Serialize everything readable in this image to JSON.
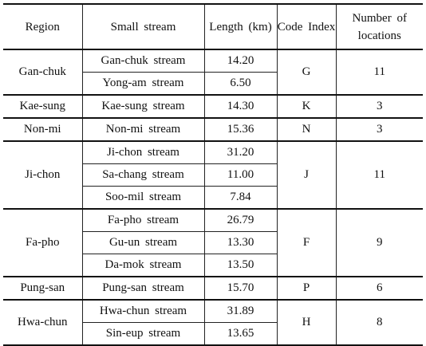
{
  "headers": {
    "region": "Region",
    "stream": "Small stream",
    "length": "Length (km)",
    "code": "Code Index",
    "locations": "Number of locations"
  },
  "groups": [
    {
      "region": "Gan-chuk",
      "code": "G",
      "locations": "11",
      "streams": [
        {
          "name": "Gan-chuk stream",
          "length": "14.20"
        },
        {
          "name": "Yong-am stream",
          "length": "6.50"
        }
      ]
    },
    {
      "region": "Kae-sung",
      "code": "K",
      "locations": "3",
      "streams": [
        {
          "name": "Kae-sung stream",
          "length": "14.30"
        }
      ]
    },
    {
      "region": "Non-mi",
      "code": "N",
      "locations": "3",
      "streams": [
        {
          "name": "Non-mi stream",
          "length": "15.36"
        }
      ]
    },
    {
      "region": "Ji-chon",
      "code": "J",
      "locations": "11",
      "streams": [
        {
          "name": "Ji-chon stream",
          "length": "31.20"
        },
        {
          "name": "Sa-chang stream",
          "length": "11.00"
        },
        {
          "name": "Soo-mil stream",
          "length": "7.84"
        }
      ]
    },
    {
      "region": "Fa-pho",
      "code": "F",
      "locations": "9",
      "streams": [
        {
          "name": "Fa-pho stream",
          "length": "26.79"
        },
        {
          "name": "Gu-un stream",
          "length": "13.30"
        },
        {
          "name": "Da-mok stream",
          "length": "13.50"
        }
      ]
    },
    {
      "region": "Pung-san",
      "code": "P",
      "locations": "6",
      "streams": [
        {
          "name": "Pung-san stream",
          "length": "15.70"
        }
      ]
    },
    {
      "region": "Hwa-chun",
      "code": "H",
      "locations": "8",
      "streams": [
        {
          "name": "Hwa-chun stream",
          "length": "31.89"
        },
        {
          "name": "Sin-eup stream",
          "length": "13.65"
        }
      ]
    }
  ]
}
